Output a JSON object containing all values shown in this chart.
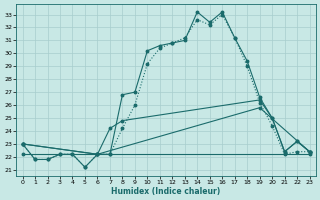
{
  "xlabel": "Humidex (Indice chaleur)",
  "background_color": "#c8e8e5",
  "grid_color": "#a8cece",
  "line_color": "#1a6b6b",
  "xlim": [
    -0.5,
    23.5
  ],
  "ylim": [
    20.5,
    33.8
  ],
  "yticks": [
    21,
    22,
    23,
    24,
    25,
    26,
    27,
    28,
    29,
    30,
    31,
    32,
    33
  ],
  "xticks": [
    0,
    1,
    2,
    3,
    4,
    5,
    6,
    7,
    8,
    9,
    10,
    11,
    12,
    13,
    14,
    15,
    16,
    17,
    18,
    19,
    20,
    21,
    22,
    23
  ],
  "line1_x": [
    0,
    1,
    2,
    3,
    4,
    5,
    6,
    7,
    8,
    9,
    10,
    11,
    12,
    13,
    14,
    15,
    16,
    17,
    18,
    19,
    20,
    21,
    22,
    23
  ],
  "line1_y": [
    23.0,
    21.8,
    21.8,
    22.2,
    22.2,
    21.2,
    22.2,
    22.2,
    26.8,
    27.0,
    30.2,
    30.6,
    30.8,
    31.0,
    33.2,
    32.4,
    33.2,
    31.2,
    29.4,
    26.6,
    25.0,
    22.4,
    23.2,
    22.4
  ],
  "line2_x": [
    0,
    1,
    2,
    3,
    4,
    5,
    6,
    7,
    8,
    9,
    10,
    11,
    12,
    13,
    14,
    15,
    16,
    17,
    18,
    19,
    20,
    21,
    22,
    23
  ],
  "line2_y": [
    23.0,
    21.8,
    21.8,
    22.2,
    22.2,
    21.2,
    22.2,
    22.2,
    24.2,
    26.0,
    29.2,
    30.4,
    30.8,
    31.2,
    32.6,
    32.2,
    33.0,
    31.2,
    29.0,
    26.2,
    24.4,
    22.2,
    22.4,
    22.4
  ],
  "line3_x": [
    0,
    23
  ],
  "line3_y": [
    22.2,
    22.2
  ],
  "line4_x": [
    0,
    6,
    7,
    8,
    19,
    20,
    21,
    22,
    23
  ],
  "line4_y": [
    23.0,
    22.2,
    24.2,
    24.8,
    26.4,
    25.0,
    22.4,
    23.2,
    22.4
  ],
  "line5_x": [
    0,
    6,
    19,
    23
  ],
  "line5_y": [
    23.0,
    22.2,
    25.8,
    22.4
  ]
}
